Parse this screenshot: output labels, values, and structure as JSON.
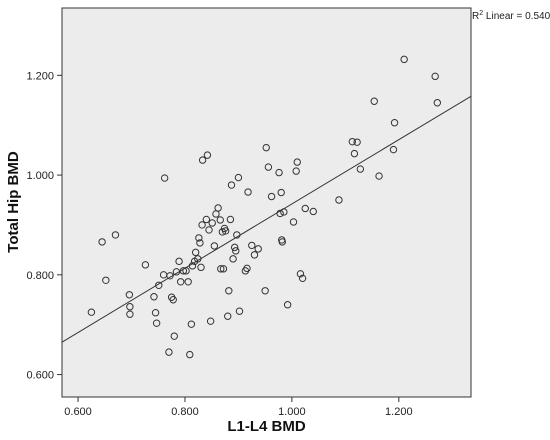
{
  "chart_data": {
    "type": "scatter",
    "xlabel": "L1-L4 BMD",
    "ylabel": "Total Hip BMD",
    "xlim": [
      0.57,
      1.335
    ],
    "ylim": [
      0.555,
      1.335
    ],
    "x_ticks": [
      0.6,
      0.8,
      1.0,
      1.2
    ],
    "y_ticks": [
      0.6,
      0.8,
      1.0,
      1.2
    ],
    "x_tick_labels": [
      "0.600",
      "0.800",
      "1.000",
      "1.200"
    ],
    "y_tick_labels": [
      "0.600",
      "0.800",
      "1.000",
      "1.200"
    ],
    "grid": false,
    "plot_background": "#ececec",
    "point_color": "#333333",
    "line_color": "#333333",
    "fit_line": {
      "x": [
        0.57,
        1.335
      ],
      "y": [
        0.665,
        1.158
      ]
    },
    "annotation": {
      "base": "R",
      "superscript": "2",
      "text": " Linear = 0.540"
    },
    "points": [
      [
        0.625,
        0.725
      ],
      [
        0.645,
        0.866
      ],
      [
        0.652,
        0.789
      ],
      [
        0.67,
        0.88
      ],
      [
        0.696,
        0.76
      ],
      [
        0.697,
        0.736
      ],
      [
        0.697,
        0.721
      ],
      [
        0.726,
        0.82
      ],
      [
        0.742,
        0.756
      ],
      [
        0.745,
        0.724
      ],
      [
        0.747,
        0.703
      ],
      [
        0.751,
        0.779
      ],
      [
        0.76,
        0.8
      ],
      [
        0.762,
        0.994
      ],
      [
        0.77,
        0.645
      ],
      [
        0.772,
        0.798
      ],
      [
        0.775,
        0.755
      ],
      [
        0.778,
        0.75
      ],
      [
        0.78,
        0.677
      ],
      [
        0.784,
        0.806
      ],
      [
        0.789,
        0.827
      ],
      [
        0.792,
        0.786
      ],
      [
        0.797,
        0.808
      ],
      [
        0.802,
        0.808
      ],
      [
        0.806,
        0.786
      ],
      [
        0.809,
        0.64
      ],
      [
        0.812,
        0.701
      ],
      [
        0.814,
        0.818
      ],
      [
        0.818,
        0.827
      ],
      [
        0.82,
        0.845
      ],
      [
        0.824,
        0.832
      ],
      [
        0.826,
        0.874
      ],
      [
        0.828,
        0.864
      ],
      [
        0.83,
        0.815
      ],
      [
        0.832,
        0.9
      ],
      [
        0.833,
        1.03
      ],
      [
        0.84,
        0.911
      ],
      [
        0.842,
        1.04
      ],
      [
        0.845,
        0.89
      ],
      [
        0.848,
        0.707
      ],
      [
        0.851,
        0.904
      ],
      [
        0.855,
        0.858
      ],
      [
        0.858,
        0.922
      ],
      [
        0.862,
        0.934
      ],
      [
        0.866,
        0.91
      ],
      [
        0.867,
        0.812
      ],
      [
        0.87,
        0.886
      ],
      [
        0.872,
        0.812
      ],
      [
        0.874,
        0.893
      ],
      [
        0.876,
        0.888
      ],
      [
        0.88,
        0.717
      ],
      [
        0.882,
        0.768
      ],
      [
        0.885,
        0.911
      ],
      [
        0.887,
        0.98
      ],
      [
        0.89,
        0.832
      ],
      [
        0.893,
        0.855
      ],
      [
        0.895,
        0.848
      ],
      [
        0.897,
        0.88
      ],
      [
        0.9,
        0.995
      ],
      [
        0.902,
        0.727
      ],
      [
        0.913,
        0.808
      ],
      [
        0.916,
        0.813
      ],
      [
        0.918,
        0.966
      ],
      [
        0.925,
        0.859
      ],
      [
        0.93,
        0.84
      ],
      [
        0.937,
        0.852
      ],
      [
        0.95,
        0.768
      ],
      [
        0.952,
        1.055
      ],
      [
        0.956,
        1.016
      ],
      [
        0.962,
        0.957
      ],
      [
        0.976,
        1.005
      ],
      [
        0.978,
        0.923
      ],
      [
        0.98,
        0.965
      ],
      [
        0.981,
        0.87
      ],
      [
        0.982,
        0.866
      ],
      [
        0.985,
        0.926
      ],
      [
        0.992,
        0.74
      ],
      [
        1.003,
        0.906
      ],
      [
        1.008,
        1.008
      ],
      [
        1.01,
        1.026
      ],
      [
        1.016,
        0.802
      ],
      [
        1.02,
        0.793
      ],
      [
        1.025,
        0.933
      ],
      [
        1.04,
        0.927
      ],
      [
        1.088,
        0.95
      ],
      [
        1.113,
        1.067
      ],
      [
        1.117,
        1.043
      ],
      [
        1.122,
        1.066
      ],
      [
        1.128,
        1.012
      ],
      [
        1.154,
        1.148
      ],
      [
        1.163,
        0.998
      ],
      [
        1.19,
        1.051
      ],
      [
        1.192,
        1.105
      ],
      [
        1.21,
        1.232
      ],
      [
        1.268,
        1.198
      ],
      [
        1.272,
        1.145
      ]
    ]
  }
}
